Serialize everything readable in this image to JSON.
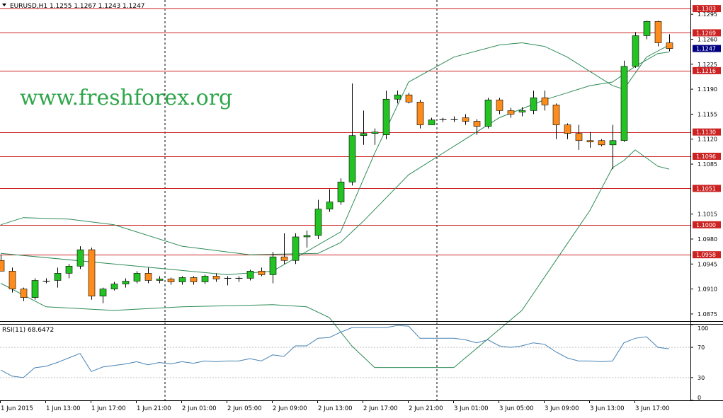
{
  "chart_title": "EURUSD,H1  1.1255 1.1267 1.1243 1.1247",
  "watermark": "www.freshforex.org",
  "colors": {
    "bull": "#22c322",
    "bear": "#ff8c1a",
    "level_line": "#cc2222",
    "band": "#2e8b57",
    "rsi": "#4682b4",
    "watermark": "#2ea64a",
    "current_price_bg": "#000080"
  },
  "chart_data": {
    "type": "candlestick",
    "symbol": "EURUSD",
    "timeframe": "H1",
    "ylim": [
      1.0865,
      1.1315
    ],
    "y_ticks": [
      "1.1295",
      "1.1260",
      "1.1225",
      "1.1190",
      "1.1155",
      "1.1120",
      "1.1085",
      "1.1015",
      "1.0980",
      "1.0945",
      "1.0910",
      "1.0875"
    ],
    "price_levels": [
      "1.1303",
      "1.1269",
      "1.1216",
      "1.1130",
      "1.1096",
      "1.1051",
      "1.1000",
      "1.0958"
    ],
    "current_price": "1.1247",
    "x_labels": [
      "1 Jun 2015",
      "1 Jun 13:00",
      "1 Jun 17:00",
      "1 Jun 21:00",
      "2 Jun 01:00",
      "2 Jun 05:00",
      "2 Jun 09:00",
      "2 Jun 13:00",
      "2 Jun 17:00",
      "2 Jun 21:00",
      "3 Jun 01:00",
      "3 Jun 05:00",
      "3 Jun 09:00",
      "3 Jun 13:00",
      "3 Jun 17:00"
    ],
    "day_separators_after_candle": [
      14,
      38
    ],
    "candles": [
      {
        "o": 1.095,
        "h": 1.0958,
        "l": 1.0935,
        "c": 1.0935
      },
      {
        "o": 1.0935,
        "h": 1.094,
        "l": 1.0905,
        "c": 1.091
      },
      {
        "o": 1.091,
        "h": 1.0912,
        "l": 1.0893,
        "c": 1.0898
      },
      {
        "o": 1.0898,
        "h": 1.0925,
        "l": 1.0895,
        "c": 1.0922
      },
      {
        "o": 1.092,
        "h": 1.0925,
        "l": 1.0918,
        "c": 1.0921
      },
      {
        "o": 1.0922,
        "h": 1.094,
        "l": 1.0912,
        "c": 1.0932
      },
      {
        "o": 1.0932,
        "h": 1.0945,
        "l": 1.0925,
        "c": 1.0942
      },
      {
        "o": 1.0942,
        "h": 1.097,
        "l": 1.0938,
        "c": 1.0965
      },
      {
        "o": 1.0965,
        "h": 1.0968,
        "l": 1.0895,
        "c": 1.09
      },
      {
        "o": 1.09,
        "h": 1.0912,
        "l": 1.089,
        "c": 1.091
      },
      {
        "o": 1.091,
        "h": 1.092,
        "l": 1.0908,
        "c": 1.0917
      },
      {
        "o": 1.0917,
        "h": 1.0925,
        "l": 1.0912,
        "c": 1.0921
      },
      {
        "o": 1.0921,
        "h": 1.0935,
        "l": 1.0918,
        "c": 1.0932
      },
      {
        "o": 1.0932,
        "h": 1.094,
        "l": 1.0918,
        "c": 1.0922
      },
      {
        "o": 1.0922,
        "h": 1.0928,
        "l": 1.0918,
        "c": 1.0924
      },
      {
        "o": 1.0924,
        "h": 1.0926,
        "l": 1.0916,
        "c": 1.092
      },
      {
        "o": 1.092,
        "h": 1.0928,
        "l": 1.0916,
        "c": 1.0926
      },
      {
        "o": 1.0926,
        "h": 1.0928,
        "l": 1.0916,
        "c": 1.092
      },
      {
        "o": 1.092,
        "h": 1.093,
        "l": 1.0917,
        "c": 1.0928
      },
      {
        "o": 1.0928,
        "h": 1.0932,
        "l": 1.092,
        "c": 1.0924
      },
      {
        "o": 1.0924,
        "h": 1.0928,
        "l": 1.0915,
        "c": 1.0925
      },
      {
        "o": 1.0925,
        "h": 1.0928,
        "l": 1.092,
        "c": 1.0925
      },
      {
        "o": 1.0925,
        "h": 1.0937,
        "l": 1.0922,
        "c": 1.0935
      },
      {
        "o": 1.0935,
        "h": 1.094,
        "l": 1.0928,
        "c": 1.093
      },
      {
        "o": 1.093,
        "h": 1.0962,
        "l": 1.0918,
        "c": 1.0955
      },
      {
        "o": 1.0955,
        "h": 1.0988,
        "l": 1.0945,
        "c": 1.095
      },
      {
        "o": 1.095,
        "h": 1.0988,
        "l": 1.0945,
        "c": 1.0983
      },
      {
        "o": 1.0983,
        "h": 1.0992,
        "l": 1.0968,
        "c": 1.0985
      },
      {
        "o": 1.0985,
        "h": 1.1035,
        "l": 1.098,
        "c": 1.1022
      },
      {
        "o": 1.1022,
        "h": 1.105,
        "l": 1.1018,
        "c": 1.1032
      },
      {
        "o": 1.1032,
        "h": 1.1065,
        "l": 1.1028,
        "c": 1.106
      },
      {
        "o": 1.106,
        "h": 1.1198,
        "l": 1.1055,
        "c": 1.1125
      },
      {
        "o": 1.1125,
        "h": 1.116,
        "l": 1.1112,
        "c": 1.1128
      },
      {
        "o": 1.1128,
        "h": 1.1135,
        "l": 1.1112,
        "c": 1.113
      },
      {
        "o": 1.1126,
        "h": 1.1188,
        "l": 1.112,
        "c": 1.1176
      },
      {
        "o": 1.1176,
        "h": 1.1188,
        "l": 1.117,
        "c": 1.1182
      },
      {
        "o": 1.1182,
        "h": 1.1185,
        "l": 1.117,
        "c": 1.1172
      },
      {
        "o": 1.1172,
        "h": 1.1175,
        "l": 1.1135,
        "c": 1.114
      },
      {
        "o": 1.114,
        "h": 1.115,
        "l": 1.114,
        "c": 1.1147
      },
      {
        "o": 1.1148,
        "h": 1.115,
        "l": 1.1144,
        "c": 1.1148
      },
      {
        "o": 1.1148,
        "h": 1.1152,
        "l": 1.1144,
        "c": 1.1148
      },
      {
        "o": 1.115,
        "h": 1.1155,
        "l": 1.114,
        "c": 1.1145
      },
      {
        "o": 1.1145,
        "h": 1.1148,
        "l": 1.1126,
        "c": 1.1138
      },
      {
        "o": 1.1138,
        "h": 1.1178,
        "l": 1.1135,
        "c": 1.1175
      },
      {
        "o": 1.1175,
        "h": 1.1178,
        "l": 1.1155,
        "c": 1.116
      },
      {
        "o": 1.116,
        "h": 1.1164,
        "l": 1.115,
        "c": 1.1155
      },
      {
        "o": 1.1158,
        "h": 1.1165,
        "l": 1.1152,
        "c": 1.116
      },
      {
        "o": 1.116,
        "h": 1.1188,
        "l": 1.1155,
        "c": 1.1178
      },
      {
        "o": 1.1178,
        "h": 1.1188,
        "l": 1.116,
        "c": 1.1168
      },
      {
        "o": 1.1168,
        "h": 1.117,
        "l": 1.112,
        "c": 1.114
      },
      {
        "o": 1.114,
        "h": 1.1142,
        "l": 1.112,
        "c": 1.1128
      },
      {
        "o": 1.1128,
        "h": 1.114,
        "l": 1.1105,
        "c": 1.1118
      },
      {
        "o": 1.1118,
        "h": 1.113,
        "l": 1.1108,
        "c": 1.1116
      },
      {
        "o": 1.1118,
        "h": 1.112,
        "l": 1.111,
        "c": 1.1112
      },
      {
        "o": 1.1112,
        "h": 1.114,
        "l": 1.1078,
        "c": 1.1118
      },
      {
        "o": 1.1118,
        "h": 1.123,
        "l": 1.1116,
        "c": 1.1222
      },
      {
        "o": 1.1222,
        "h": 1.127,
        "l": 1.122,
        "c": 1.1265
      },
      {
        "o": 1.1265,
        "h": 1.1286,
        "l": 1.126,
        "c": 1.1285
      },
      {
        "o": 1.1285,
        "h": 1.1286,
        "l": 1.125,
        "c": 1.1255
      },
      {
        "o": 1.1255,
        "h": 1.1267,
        "l": 1.1243,
        "c": 1.1247
      }
    ],
    "bollinger": {
      "middle": [
        [
          0,
          1.096
        ],
        [
          10,
          1.0945
        ],
        [
          20,
          1.093
        ],
        [
          24,
          1.0935
        ],
        [
          30,
          1.099
        ],
        [
          33,
          1.11
        ],
        [
          36,
          1.12
        ],
        [
          40,
          1.1235
        ],
        [
          44,
          1.1252
        ],
        [
          46,
          1.1255
        ],
        [
          48,
          1.125
        ],
        [
          50,
          1.1235
        ],
        [
          52,
          1.1215
        ],
        [
          54,
          1.1195
        ],
        [
          55,
          1.119
        ],
        [
          57,
          1.1235
        ],
        [
          59,
          1.1252
        ]
      ],
      "upper": [
        [
          0,
          1.1
        ],
        [
          2,
          1.101
        ],
        [
          6,
          1.1008
        ],
        [
          10,
          1.1
        ],
        [
          16,
          1.097
        ],
        [
          22,
          1.0958
        ],
        [
          28,
          1.096
        ],
        [
          30,
          1.0975
        ],
        [
          32,
          1.1005
        ],
        [
          36,
          1.107
        ],
        [
          40,
          1.111
        ],
        [
          44,
          1.115
        ],
        [
          48,
          1.1175
        ],
        [
          50,
          1.1185
        ],
        [
          52,
          1.1195
        ],
        [
          54,
          1.12
        ],
        [
          56,
          1.1222
        ],
        [
          58,
          1.124
        ],
        [
          59,
          1.1242
        ]
      ],
      "lower": [
        [
          0,
          1.0918
        ],
        [
          4,
          1.0885
        ],
        [
          10,
          1.088
        ],
        [
          16,
          1.0885
        ],
        [
          24,
          1.0888
        ],
        [
          27,
          1.0885
        ],
        [
          29,
          1.087
        ],
        [
          31,
          1.083
        ],
        [
          33,
          1.08
        ],
        [
          40,
          1.08
        ],
        [
          43,
          1.084
        ],
        [
          46,
          1.088
        ],
        [
          49,
          1.095
        ],
        [
          52,
          1.102
        ],
        [
          54,
          1.108
        ],
        [
          55,
          1.109
        ],
        [
          56,
          1.1105
        ],
        [
          58,
          1.1082
        ],
        [
          59,
          1.1078
        ]
      ]
    },
    "rsi": {
      "label": "RSI(11) 68.6472",
      "ylim": [
        0,
        100
      ],
      "y_ticks": [
        "100",
        "70",
        "30",
        "0"
      ],
      "values": [
        [
          0,
          40
        ],
        [
          1,
          32
        ],
        [
          2,
          30
        ],
        [
          3,
          43
        ],
        [
          4,
          45
        ],
        [
          5,
          50
        ],
        [
          6,
          56
        ],
        [
          7,
          62
        ],
        [
          8,
          38
        ],
        [
          9,
          44
        ],
        [
          10,
          46
        ],
        [
          11,
          48
        ],
        [
          12,
          51
        ],
        [
          13,
          47
        ],
        [
          14,
          50
        ],
        [
          15,
          48
        ],
        [
          16,
          51
        ],
        [
          17,
          49
        ],
        [
          18,
          52
        ],
        [
          19,
          51
        ],
        [
          20,
          52
        ],
        [
          21,
          52
        ],
        [
          22,
          55
        ],
        [
          23,
          52
        ],
        [
          24,
          60
        ],
        [
          25,
          58
        ],
        [
          26,
          72
        ],
        [
          27,
          72
        ],
        [
          28,
          82
        ],
        [
          29,
          83
        ],
        [
          30,
          90
        ],
        [
          31,
          96
        ],
        [
          32,
          96
        ],
        [
          33,
          96
        ],
        [
          34,
          96
        ],
        [
          35,
          99
        ],
        [
          36,
          98
        ],
        [
          37,
          82
        ],
        [
          38,
          82
        ],
        [
          39,
          82
        ],
        [
          40,
          82
        ],
        [
          41,
          80
        ],
        [
          42,
          76
        ],
        [
          43,
          80
        ],
        [
          44,
          72
        ],
        [
          45,
          70
        ],
        [
          46,
          72
        ],
        [
          47,
          76
        ],
        [
          48,
          74
        ],
        [
          49,
          64
        ],
        [
          50,
          56
        ],
        [
          51,
          52
        ],
        [
          52,
          52
        ],
        [
          53,
          51
        ],
        [
          54,
          52
        ],
        [
          55,
          76
        ],
        [
          56,
          82
        ],
        [
          57,
          84
        ],
        [
          58,
          70
        ],
        [
          59,
          68
        ]
      ]
    }
  }
}
